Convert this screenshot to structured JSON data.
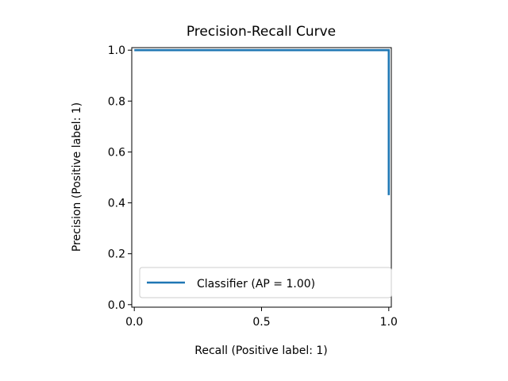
{
  "chart_data": {
    "type": "line",
    "title": "Precision-Recall Curve",
    "xlabel": "Recall (Positive label: 1)",
    "ylabel": "Precision (Positive label: 1)",
    "xlim": [
      -0.01,
      1.01
    ],
    "ylim": [
      -0.01,
      1.01
    ],
    "xticks": [
      0.0,
      0.5,
      1.0
    ],
    "xtick_labels": [
      "0.0",
      "0.5",
      "1.0"
    ],
    "yticks": [
      0.0,
      0.2,
      0.4,
      0.6,
      0.8,
      1.0
    ],
    "ytick_labels": [
      "0.0",
      "0.2",
      "0.4",
      "0.6",
      "0.8",
      "1.0"
    ],
    "grid": false,
    "legend_position": "lower-right",
    "series": [
      {
        "name": "Classifier (AP = 1.00)",
        "color": "#1f77b4",
        "x": [
          0.0,
          1.0,
          1.0
        ],
        "y": [
          1.0,
          1.0,
          0.43
        ]
      }
    ]
  }
}
